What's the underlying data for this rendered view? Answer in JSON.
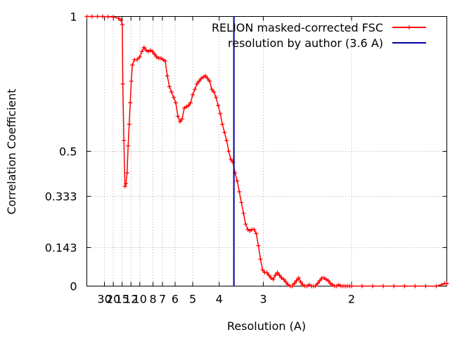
{
  "chart_data": {
    "type": "line",
    "xlabel": "Resolution (A)",
    "ylabel": "Correlation Coefficient",
    "x_scale": "reciprocal",
    "xlim": [
      0.0,
      0.68
    ],
    "ylim": [
      0,
      1
    ],
    "grid": true,
    "legend_position": "top-right",
    "x_ticks": [
      {
        "value": 30,
        "label": "30"
      },
      {
        "value": 20,
        "label": "20"
      },
      {
        "value": 15,
        "label": "15"
      },
      {
        "value": 12,
        "label": "12"
      },
      {
        "value": 10,
        "label": "10"
      },
      {
        "value": 8,
        "label": "8"
      },
      {
        "value": 7,
        "label": "7"
      },
      {
        "value": 6,
        "label": "6"
      },
      {
        "value": 5,
        "label": "5"
      },
      {
        "value": 4,
        "label": "4"
      },
      {
        "value": 3,
        "label": "3"
      },
      {
        "value": 2,
        "label": "2"
      }
    ],
    "y_ticks": [
      {
        "value": 0,
        "label": "0"
      },
      {
        "value": 0.143,
        "label": "0.143"
      },
      {
        "value": 0.333,
        "label": "0.333"
      },
      {
        "value": 0.5,
        "label": "0.5"
      },
      {
        "value": 1,
        "label": "1"
      }
    ],
    "series": [
      {
        "name": "RELION masked-corrected FSC",
        "color": "#ff0000",
        "marker": "plus",
        "x": [
          0.0,
          0.01,
          0.02,
          0.03,
          0.04,
          0.05,
          0.06,
          0.065,
          0.067,
          0.068,
          0.07,
          0.072,
          0.074,
          0.076,
          0.078,
          0.08,
          0.082,
          0.084,
          0.086,
          0.09,
          0.095,
          0.1,
          0.104,
          0.108,
          0.112,
          0.116,
          0.12,
          0.124,
          0.128,
          0.132,
          0.136,
          0.14,
          0.144,
          0.148,
          0.152,
          0.156,
          0.16,
          0.164,
          0.168,
          0.172,
          0.176,
          0.18,
          0.184,
          0.188,
          0.192,
          0.196,
          0.2,
          0.204,
          0.208,
          0.212,
          0.216,
          0.22,
          0.224,
          0.228,
          0.232,
          0.236,
          0.24,
          0.244,
          0.248,
          0.252,
          0.256,
          0.26,
          0.264,
          0.268,
          0.272,
          0.276,
          0.28,
          0.284,
          0.288,
          0.292,
          0.296,
          0.3,
          0.304,
          0.308,
          0.312,
          0.316,
          0.32,
          0.324,
          0.328,
          0.332,
          0.336,
          0.34,
          0.344,
          0.348,
          0.352,
          0.356,
          0.36,
          0.364,
          0.368,
          0.372,
          0.376,
          0.38,
          0.384,
          0.388,
          0.392,
          0.396,
          0.4,
          0.404,
          0.408,
          0.412,
          0.416,
          0.42,
          0.424,
          0.428,
          0.432,
          0.436,
          0.44,
          0.444,
          0.448,
          0.452,
          0.456,
          0.46,
          0.464,
          0.468,
          0.472,
          0.476,
          0.48,
          0.484,
          0.488,
          0.492,
          0.496,
          0.5,
          0.52,
          0.54,
          0.56,
          0.58,
          0.6,
          0.62,
          0.64,
          0.66,
          0.67,
          0.676,
          0.68
        ],
        "y": [
          1.0,
          1.0,
          1.0,
          1.0,
          0.999,
          0.998,
          0.993,
          0.985,
          0.97,
          0.75,
          0.54,
          0.37,
          0.38,
          0.42,
          0.52,
          0.6,
          0.68,
          0.76,
          0.82,
          0.84,
          0.84,
          0.85,
          0.87,
          0.885,
          0.875,
          0.87,
          0.875,
          0.87,
          0.86,
          0.85,
          0.845,
          0.845,
          0.84,
          0.835,
          0.78,
          0.74,
          0.72,
          0.7,
          0.68,
          0.63,
          0.61,
          0.62,
          0.66,
          0.665,
          0.67,
          0.68,
          0.71,
          0.73,
          0.75,
          0.76,
          0.77,
          0.775,
          0.78,
          0.77,
          0.76,
          0.73,
          0.72,
          0.7,
          0.67,
          0.64,
          0.6,
          0.57,
          0.54,
          0.5,
          0.47,
          0.46,
          0.42,
          0.39,
          0.35,
          0.31,
          0.27,
          0.23,
          0.21,
          0.205,
          0.21,
          0.21,
          0.195,
          0.15,
          0.1,
          0.06,
          0.05,
          0.05,
          0.04,
          0.03,
          0.025,
          0.04,
          0.05,
          0.04,
          0.03,
          0.025,
          0.015,
          0.005,
          0.0,
          0.0,
          0.01,
          0.02,
          0.03,
          0.015,
          0.005,
          0.0,
          0.0,
          0.005,
          0.0,
          0.0,
          0.0,
          0.01,
          0.02,
          0.03,
          0.03,
          0.025,
          0.02,
          0.01,
          0.005,
          0.0,
          0.0,
          0.005,
          0.0,
          0.0,
          0.0,
          0.0,
          0.0,
          0.0,
          0.0,
          0.0,
          0.0,
          0.0,
          0.0,
          0.0,
          0.0,
          0.0,
          0.005,
          0.01,
          0.01
        ]
      },
      {
        "name": "resolution by author (3.6 A)",
        "color": "#0000a0",
        "type": "vline",
        "x_value": 3.6
      }
    ]
  }
}
